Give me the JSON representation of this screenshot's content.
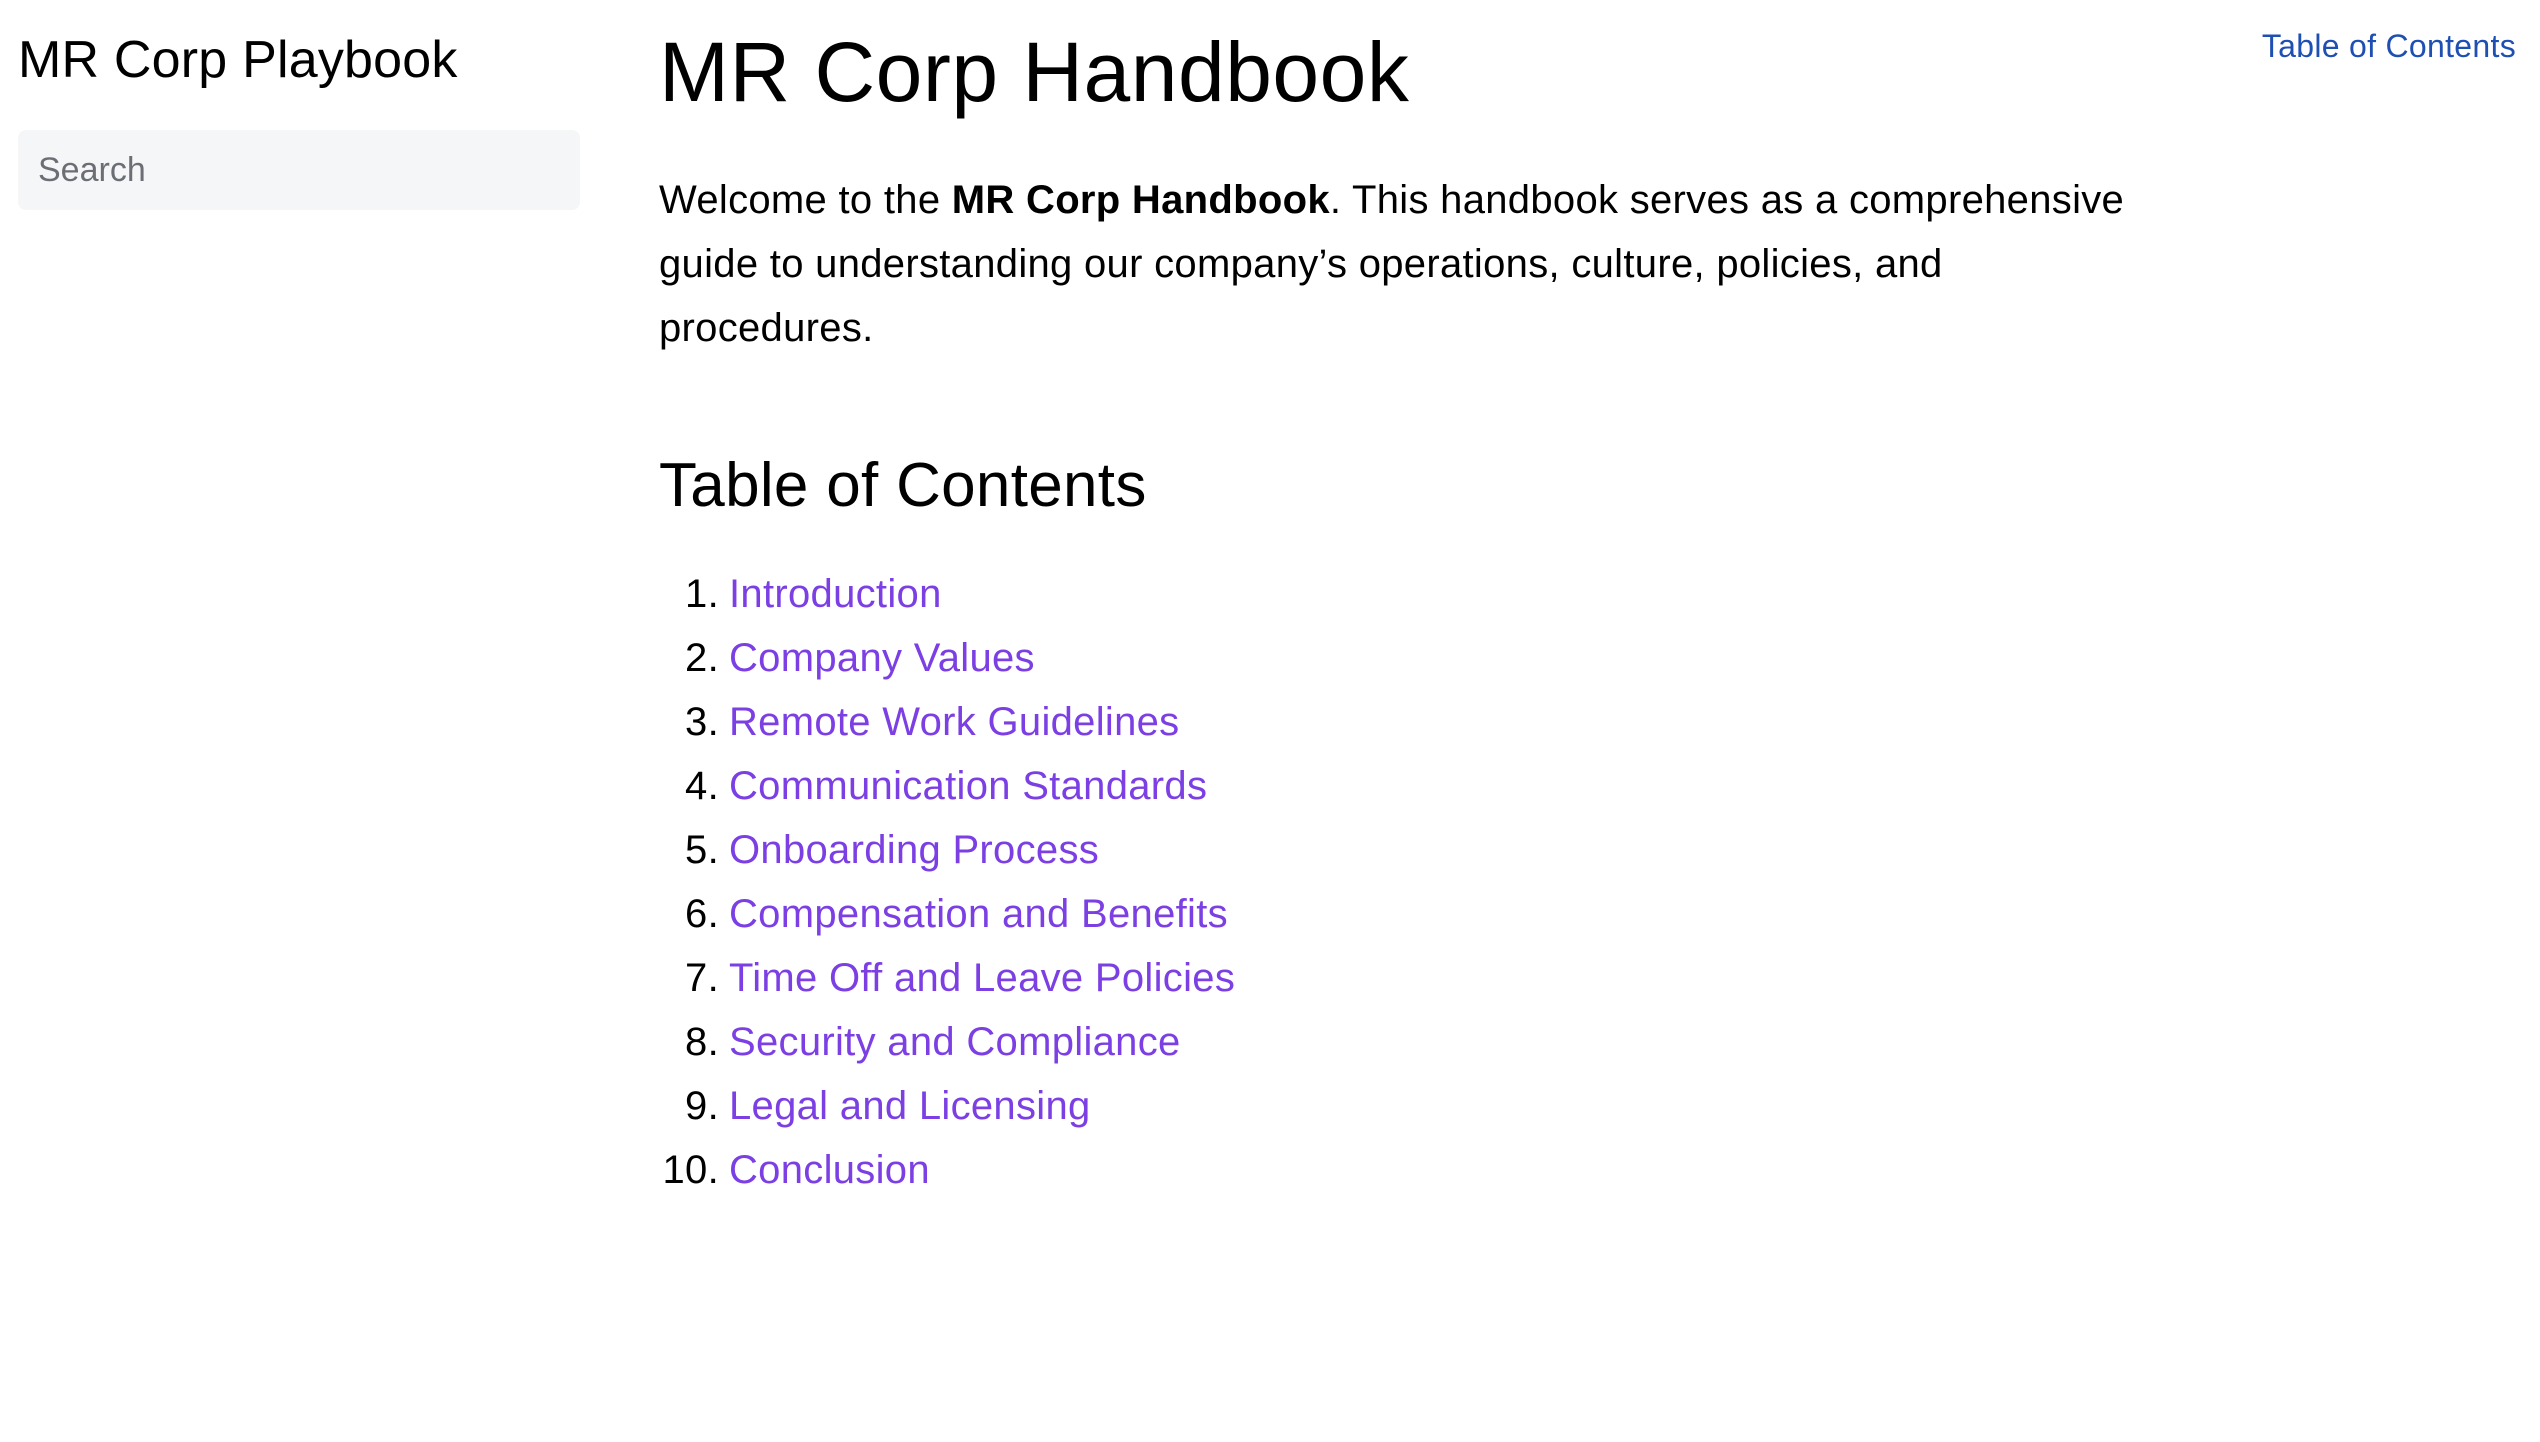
{
  "sidebar": {
    "site_title": "MR Corp Playbook",
    "search_placeholder": "Search"
  },
  "header": {
    "right_toc_link": "Table of Contents"
  },
  "main": {
    "title": "MR Corp Handbook",
    "intro_before": "Welcome to the ",
    "intro_bold": "MR Corp Handbook",
    "intro_after": ". This handbook serves as a comprehensive guide to understanding our company’s operations, culture, policies, and procedures.",
    "toc_heading": "Table of Contents",
    "toc_items": [
      {
        "num": "1.",
        "label": "Introduction"
      },
      {
        "num": "2.",
        "label": "Company Values"
      },
      {
        "num": "3.",
        "label": "Remote Work Guidelines"
      },
      {
        "num": "4.",
        "label": "Communication Standards"
      },
      {
        "num": "5.",
        "label": "Onboarding Process"
      },
      {
        "num": "6.",
        "label": "Compensation and Benefits"
      },
      {
        "num": "7.",
        "label": "Time Off and Leave Policies"
      },
      {
        "num": "8.",
        "label": "Security and Compliance"
      },
      {
        "num": "9.",
        "label": "Legal and Licensing"
      },
      {
        "num": "10.",
        "label": "Conclusion"
      }
    ]
  },
  "colors": {
    "link_visited": "#7b3fe4",
    "link_accent": "#1e4fb2",
    "search_bg": "#f5f6f7"
  }
}
